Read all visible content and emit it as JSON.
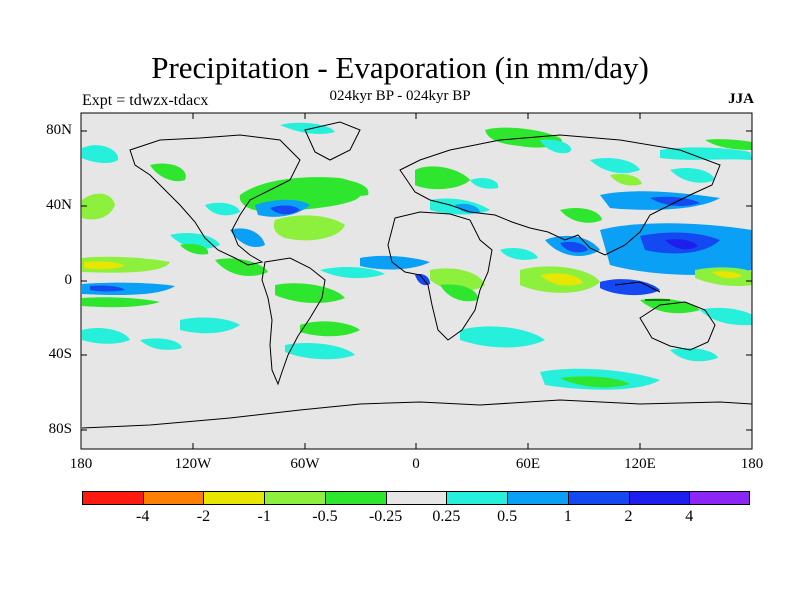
{
  "title": "Precipitation - Evaporation (in mm/day)",
  "subtitle": "024kyr BP - 024kyr BP",
  "experiment": "Expt = tdwzx-tdacx",
  "season": "JJA",
  "latitude_labels": [
    "80N",
    "40N",
    "0",
    "40S",
    "80S"
  ],
  "longitude_labels": [
    "180",
    "120W",
    "60W",
    "0",
    "60E",
    "120E",
    "180"
  ],
  "colorbar": {
    "colors": [
      "#ff1a10",
      "#ff8000",
      "#e6e600",
      "#8cf03c",
      "#2ee62e",
      "#e6e6e6",
      "#26f0dc",
      "#0aa0f5",
      "#1448f0",
      "#1e1eee",
      "#8c26f5"
    ],
    "labels": [
      "-4",
      "-2",
      "-1",
      "-0.5",
      "-0.25",
      "0.25",
      "0.5",
      "1",
      "2",
      "4"
    ]
  },
  "map": {
    "background": "#e6e6e6",
    "projection": "cylindrical-equidistant",
    "lat_range": [
      -90,
      90
    ],
    "lon_range": [
      -180,
      180
    ]
  }
}
